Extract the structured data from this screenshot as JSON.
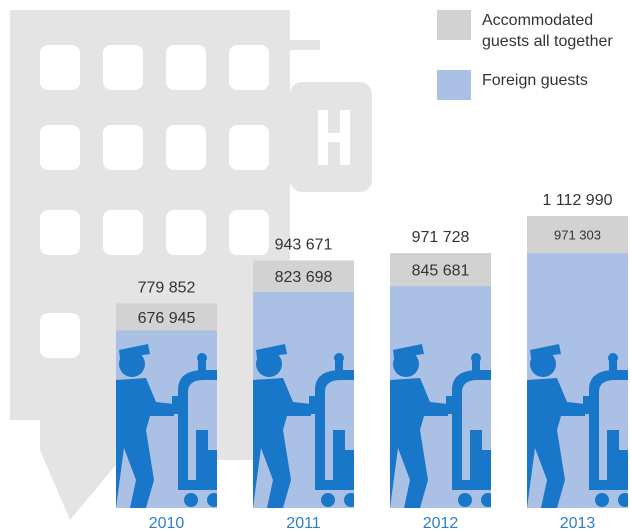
{
  "chart_data": {
    "type": "bar",
    "categories": [
      "2010",
      "2011",
      "2012",
      "2013"
    ],
    "series": [
      {
        "name": "Accommodated guests all together",
        "color": "#d2d2d2",
        "values": [
          779852,
          943671,
          971728,
          1112990
        ],
        "value_labels": [
          "779 852",
          "943 671",
          "971 728",
          "1 112 990"
        ]
      },
      {
        "name": "Foreign guests",
        "color": "#aac0e4",
        "values": [
          676945,
          823698,
          845681,
          971303
        ],
        "value_labels": [
          "676 945",
          "823 698",
          "845 681",
          "971 303"
        ]
      }
    ]
  }
}
